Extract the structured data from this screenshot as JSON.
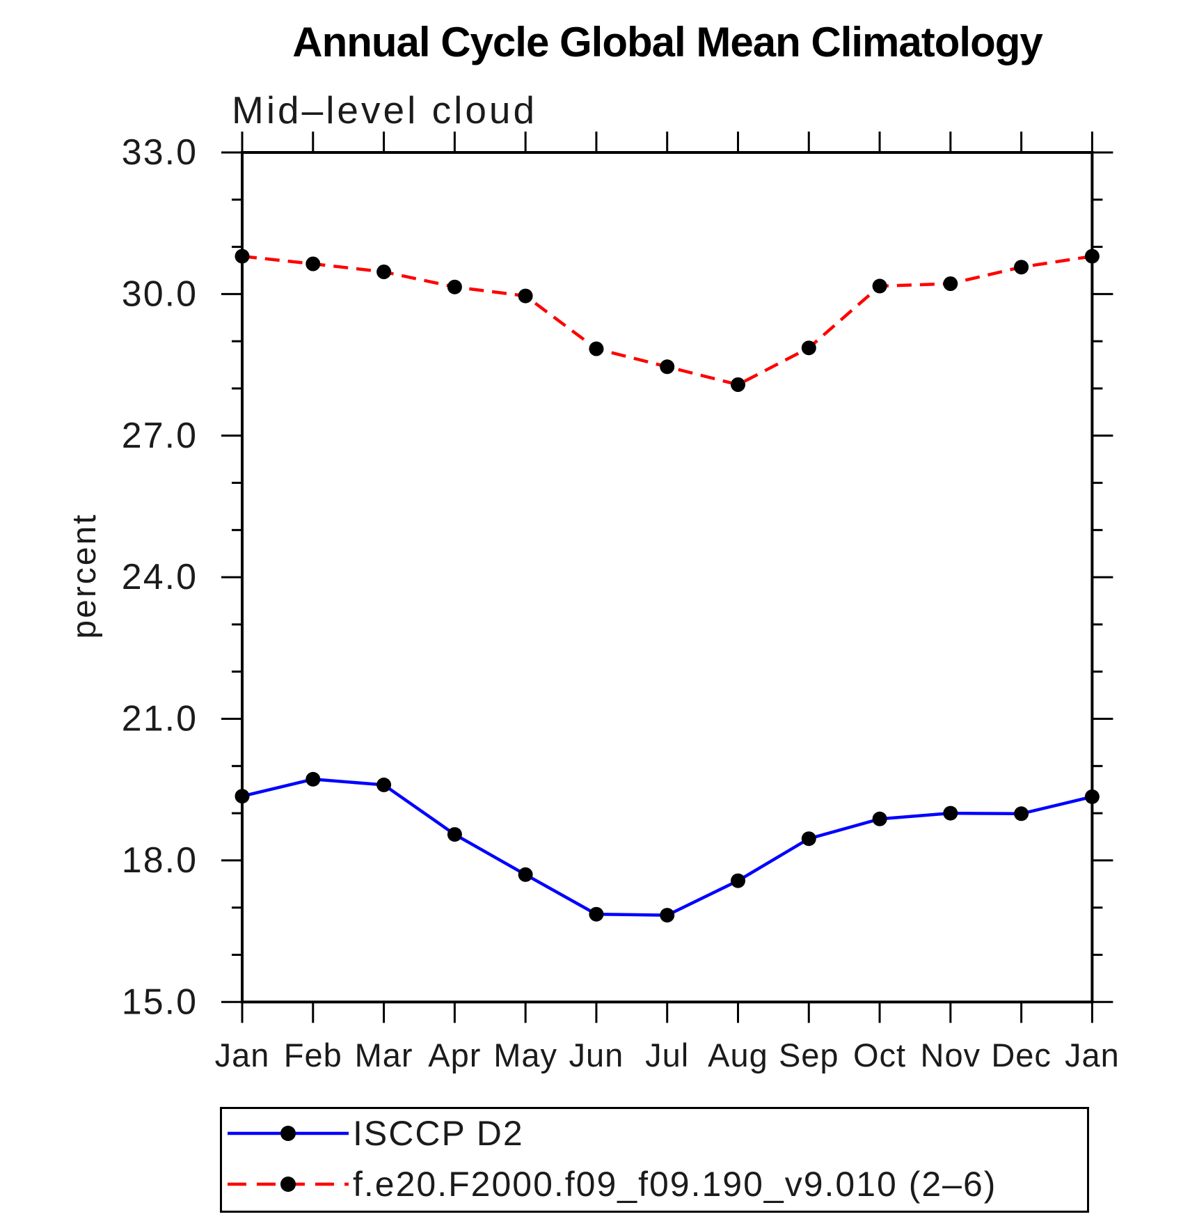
{
  "page": {
    "title": "Annual Cycle Global Mean Climatology",
    "subtitle": "Mid–level cloud",
    "ylabel": "percent"
  },
  "chart_data": {
    "type": "line",
    "title": "Annual Cycle Global Mean Climatology",
    "subtitle": "Mid–level cloud",
    "xlabel": "",
    "ylabel": "percent",
    "ylim": [
      15.0,
      33.0
    ],
    "ytick_major_interval": 3.0,
    "ytick_minor_interval": 1.0,
    "ytick_labels": [
      "15.0",
      "18.0",
      "21.0",
      "24.0",
      "27.0",
      "30.0",
      "33.0"
    ],
    "grid": false,
    "legend_position": "bottom",
    "categories": [
      "Jan",
      "Feb",
      "Mar",
      "Apr",
      "May",
      "Jun",
      "Jul",
      "Aug",
      "Sep",
      "Oct",
      "Nov",
      "Dec",
      "Jan"
    ],
    "series": [
      {
        "name": "ISCCP D2",
        "color": "#0000ff",
        "line_style": "solid",
        "marker": "circle",
        "marker_color": "#000000",
        "values": [
          19.36,
          19.72,
          19.6,
          18.55,
          17.7,
          16.86,
          16.84,
          17.57,
          18.46,
          18.88,
          19.0,
          18.99,
          19.35
        ]
      },
      {
        "name": "f.e20.F2000.f09_f09.190_v9.010 (2–6)",
        "color": "#ff0000",
        "line_style": "dashed",
        "marker": "circle",
        "marker_color": "#000000",
        "values": [
          30.8,
          30.64,
          30.47,
          30.15,
          29.96,
          28.84,
          28.46,
          28.08,
          28.86,
          30.17,
          30.22,
          30.57,
          30.8
        ]
      }
    ]
  }
}
